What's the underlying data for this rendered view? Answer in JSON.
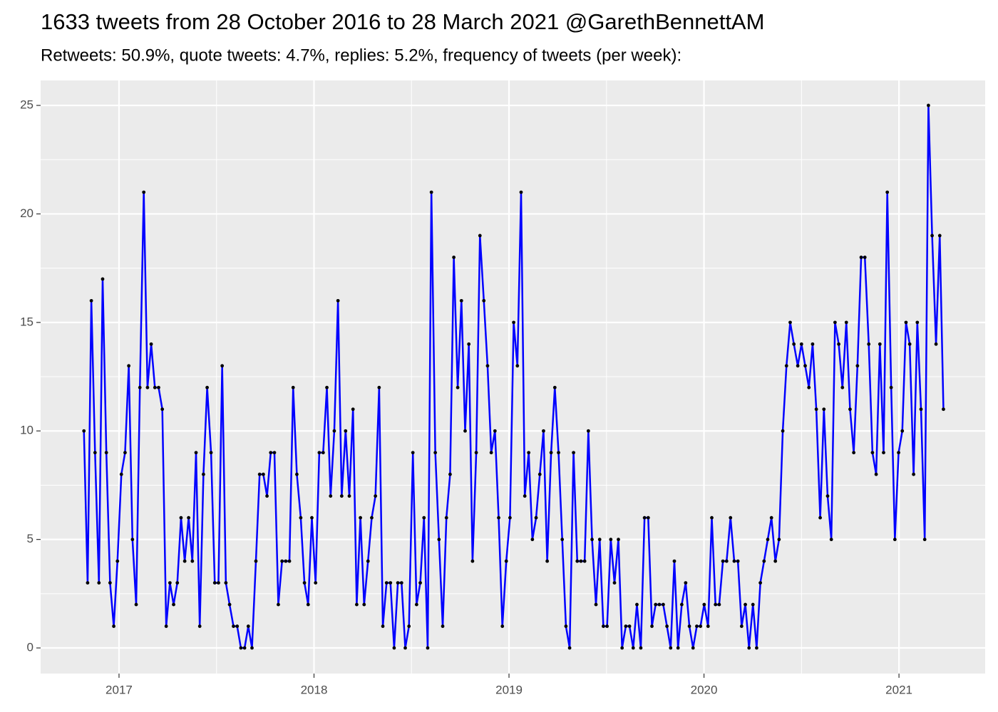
{
  "chart_data": {
    "type": "line",
    "title": "1633 tweets from 28 October 2016 to 28 March 2021 @GarethBennettAM",
    "subtitle": "Retweets: 50.9%, quote tweets: 4.7%, replies: 5.2%, frequency of tweets (per week):",
    "color": "#0000ff",
    "marker_color": "#000000",
    "grid": true,
    "xlim": [
      2016.598,
      2021.442
    ],
    "xticks": [
      2017,
      2018,
      2019,
      2020,
      2021
    ],
    "ylim": [
      -1.18,
      26.15
    ],
    "yticks": [
      0,
      5,
      10,
      15,
      20,
      25
    ],
    "x": [
      2016.82,
      2016.839,
      2016.858,
      2016.877,
      2016.897,
      2016.916,
      2016.935,
      2016.954,
      2016.973,
      2016.992,
      2017.012,
      2017.031,
      2017.05,
      2017.069,
      2017.088,
      2017.107,
      2017.127,
      2017.146,
      2017.165,
      2017.184,
      2017.203,
      2017.222,
      2017.242,
      2017.261,
      2017.28,
      2017.299,
      2017.318,
      2017.337,
      2017.357,
      2017.376,
      2017.395,
      2017.414,
      2017.433,
      2017.452,
      2017.472,
      2017.491,
      2017.51,
      2017.529,
      2017.548,
      2017.567,
      2017.587,
      2017.606,
      2017.625,
      2017.644,
      2017.663,
      2017.682,
      2017.702,
      2017.721,
      2017.74,
      2017.759,
      2017.778,
      2017.797,
      2017.817,
      2017.836,
      2017.855,
      2017.874,
      2017.893,
      2017.912,
      2017.932,
      2017.951,
      2017.97,
      2017.989,
      2018.008,
      2018.027,
      2018.047,
      2018.066,
      2018.085,
      2018.104,
      2018.123,
      2018.142,
      2018.162,
      2018.181,
      2018.2,
      2018.219,
      2018.238,
      2018.257,
      2018.277,
      2018.296,
      2018.315,
      2018.334,
      2018.353,
      2018.372,
      2018.392,
      2018.411,
      2018.43,
      2018.449,
      2018.468,
      2018.487,
      2018.507,
      2018.526,
      2018.545,
      2018.564,
      2018.583,
      2018.602,
      2018.622,
      2018.641,
      2018.66,
      2018.679,
      2018.698,
      2018.717,
      2018.737,
      2018.756,
      2018.775,
      2018.794,
      2018.813,
      2018.832,
      2018.851,
      2018.871,
      2018.89,
      2018.909,
      2018.928,
      2018.947,
      2018.966,
      2018.986,
      2019.005,
      2019.024,
      2019.043,
      2019.062,
      2019.081,
      2019.101,
      2019.12,
      2019.139,
      2019.158,
      2019.177,
      2019.196,
      2019.216,
      2019.235,
      2019.254,
      2019.273,
      2019.292,
      2019.311,
      2019.331,
      2019.35,
      2019.369,
      2019.388,
      2019.407,
      2019.426,
      2019.446,
      2019.465,
      2019.484,
      2019.503,
      2019.522,
      2019.541,
      2019.561,
      2019.58,
      2019.599,
      2019.618,
      2019.637,
      2019.656,
      2019.676,
      2019.695,
      2019.714,
      2019.733,
      2019.752,
      2019.771,
      2019.791,
      2019.81,
      2019.829,
      2019.848,
      2019.867,
      2019.886,
      2019.906,
      2019.925,
      2019.944,
      2019.963,
      2019.982,
      2020.001,
      2020.021,
      2020.04,
      2020.059,
      2020.078,
      2020.097,
      2020.116,
      2020.136,
      2020.155,
      2020.174,
      2020.193,
      2020.212,
      2020.231,
      2020.251,
      2020.27,
      2020.289,
      2020.308,
      2020.327,
      2020.346,
      2020.366,
      2020.385,
      2020.404,
      2020.423,
      2020.442,
      2020.461,
      2020.481,
      2020.5,
      2020.519,
      2020.538,
      2020.557,
      2020.576,
      2020.596,
      2020.615,
      2020.634,
      2020.653,
      2020.672,
      2020.691,
      2020.71,
      2020.73,
      2020.749,
      2020.768,
      2020.787,
      2020.806,
      2020.825,
      2020.845,
      2020.864,
      2020.883,
      2020.902,
      2020.921,
      2020.94,
      2020.96,
      2020.979,
      2020.998,
      2021.017,
      2021.036,
      2021.055,
      2021.075,
      2021.094,
      2021.113,
      2021.132,
      2021.151,
      2021.17,
      2021.19,
      2021.209,
      2021.228
    ],
    "values": [
      10,
      3,
      16,
      9,
      3,
      17,
      9,
      3,
      1,
      4,
      8,
      9,
      13,
      5,
      2,
      12,
      21,
      12,
      14,
      12,
      12,
      11,
      1,
      3,
      2,
      3,
      6,
      4,
      6,
      4,
      9,
      1,
      8,
      12,
      9,
      3,
      3,
      13,
      3,
      2,
      1,
      1,
      0,
      0,
      1,
      0,
      4,
      8,
      8,
      7,
      9,
      9,
      2,
      4,
      4,
      4,
      12,
      8,
      6,
      3,
      2,
      6,
      3,
      9,
      9,
      12,
      7,
      10,
      16,
      7,
      10,
      7,
      11,
      2,
      6,
      2,
      4,
      6,
      7,
      12,
      1,
      3,
      3,
      0,
      3,
      3,
      0,
      1,
      9,
      2,
      3,
      6,
      0,
      21,
      9,
      5,
      1,
      6,
      8,
      18,
      12,
      16,
      10,
      14,
      4,
      9,
      19,
      16,
      13,
      9,
      10,
      6,
      1,
      4,
      6,
      15,
      13,
      21,
      7,
      9,
      5,
      6,
      8,
      10,
      4,
      9,
      12,
      9,
      5,
      1,
      0,
      9,
      4,
      4,
      4,
      10,
      5,
      2,
      5,
      1,
      1,
      5,
      3,
      5,
      0,
      1,
      1,
      0,
      2,
      0,
      6,
      6,
      1,
      2,
      2,
      2,
      1,
      0,
      4,
      0,
      2,
      3,
      1,
      0,
      1,
      1,
      2,
      1,
      6,
      2,
      2,
      4,
      4,
      6,
      4,
      4,
      1,
      2,
      0,
      2,
      0,
      3,
      4,
      5,
      6,
      4,
      5,
      10,
      13,
      15,
      14,
      13,
      14,
      13,
      12,
      14,
      11,
      6,
      11,
      7,
      5,
      15,
      14,
      12,
      15,
      11,
      9,
      13,
      18,
      18,
      14,
      9,
      8,
      14,
      9,
      21,
      12,
      5,
      9,
      10,
      15,
      14,
      8,
      15,
      11,
      5,
      25,
      19,
      14,
      19,
      11
    ]
  }
}
